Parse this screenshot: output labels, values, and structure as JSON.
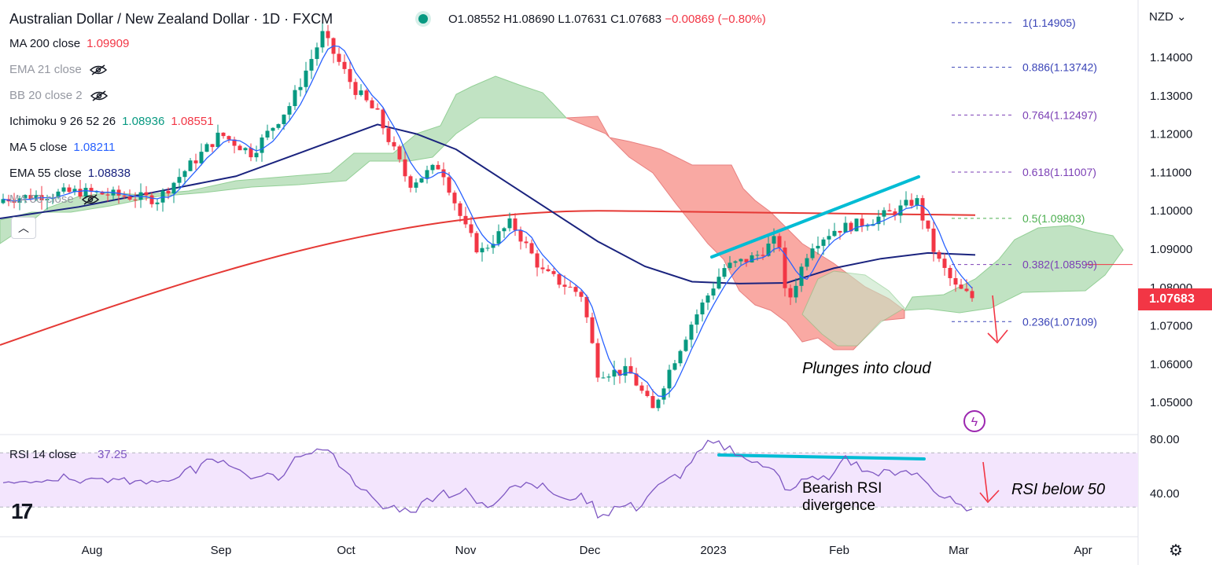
{
  "header": {
    "title": "Australian Dollar / New Zealand Dollar · 1D · FXCM",
    "ohlc": {
      "open_label": "O",
      "open": "1.08552",
      "high_label": "H",
      "high": "1.08690",
      "low_label": "L",
      "low": "1.07631",
      "close_label": "C",
      "close": "1.07683",
      "change": "−0.00869 (−0.80%)"
    }
  },
  "legend": [
    {
      "name": "MA 200 close",
      "value": "1.09909",
      "color": "#f23645",
      "hidden": false
    },
    {
      "name": "EMA 21 close",
      "value": "",
      "color": "#b2b5be",
      "hidden": true
    },
    {
      "name": "BB 20 close 2",
      "value": "",
      "color": "#b2b5be",
      "hidden": true
    },
    {
      "name": "Ichimoku 9 26 52 26",
      "value": "1.08936",
      "value2": "1.08551",
      "color": "#089981",
      "color2": "#f23645",
      "hidden": false
    },
    {
      "name": "MA 5 close",
      "value": "1.08211",
      "color": "#2962ff",
      "hidden": false
    },
    {
      "name": "EMA 55 close",
      "value": "1.08838",
      "color": "#1a237e",
      "hidden": false
    },
    {
      "name": "MA 50 close",
      "value": "",
      "color": "#b2b5be",
      "hidden": true
    }
  ],
  "price_axis": {
    "currency": "NZD",
    "ticks": [
      "1.14000",
      "1.13000",
      "1.12000",
      "1.11000",
      "1.10000",
      "1.09000",
      "1.08000",
      "1.07000",
      "1.06000",
      "1.05000"
    ],
    "last_price": "1.07683",
    "last_price_color": "#f23645"
  },
  "time_axis": {
    "ticks": [
      "Aug",
      "Sep",
      "Oct",
      "Nov",
      "Dec",
      "2023",
      "Feb",
      "Mar",
      "Apr"
    ]
  },
  "fibonacci": [
    {
      "label": "1(1.14905)",
      "price": 1.14905,
      "color": "#3943b7"
    },
    {
      "label": "0.886(1.13742)",
      "price": 1.13742,
      "color": "#3943b7"
    },
    {
      "label": "0.764(1.12497)",
      "price": 1.12497,
      "color": "#7b3fb5"
    },
    {
      "label": "0.618(1.11007)",
      "price": 1.11007,
      "color": "#7b3fb5"
    },
    {
      "label": "0.5(1.09803)",
      "price": 1.09803,
      "color": "#4caf50"
    },
    {
      "label": "0.382(1.08599)",
      "price": 1.08599,
      "color": "#7b3fb5"
    },
    {
      "label": "0.236(1.07109)",
      "price": 1.07109,
      "color": "#3943b7"
    }
  ],
  "rsi": {
    "label": "RSI 14 close",
    "value": "37.25",
    "ticks": [
      "80.00",
      "40.00"
    ],
    "color": "#7e57c2"
  },
  "annotations": {
    "plunge": "Plunges into cloud",
    "divergence_line1": "Bearish RSI",
    "divergence_line2": "divergence",
    "rsi_below": "RSI below 50"
  },
  "colors": {
    "up": "#089981",
    "down": "#f23645",
    "trendline": "#00bcd4",
    "cloud_bull": "#b7dfb9",
    "cloud_bear": "#f9a09a",
    "ma200": "#e53935",
    "ema55": "#1a237e",
    "ma5": "#2962ff"
  },
  "chart_data": {
    "type": "candlestick",
    "symbol": "AUDNZD",
    "interval": "1D",
    "y_range": [
      1.046,
      1.152
    ],
    "x_range_days": [
      "2022-07-01",
      "2023-04-19"
    ],
    "candles_approx": [
      [
        "2022-08-05",
        1.105,
        1.109,
        1.101,
        1.107
      ],
      [
        "2022-08-12",
        1.1075,
        1.111,
        1.104,
        1.106
      ],
      [
        "2022-08-19",
        1.106,
        1.108,
        1.102,
        1.104
      ],
      [
        "2022-08-26",
        1.104,
        1.107,
        1.1,
        1.105
      ],
      [
        "2022-09-02",
        1.105,
        1.12,
        1.104,
        1.118
      ],
      [
        "2022-09-09",
        1.118,
        1.125,
        1.115,
        1.122
      ],
      [
        "2022-09-16",
        1.122,
        1.123,
        1.113,
        1.115
      ],
      [
        "2022-09-23",
        1.115,
        1.133,
        1.114,
        1.132
      ],
      [
        "2022-09-30",
        1.132,
        1.149,
        1.13,
        1.144
      ],
      [
        "2022-10-07",
        1.144,
        1.146,
        1.13,
        1.135
      ],
      [
        "2022-10-14",
        1.135,
        1.138,
        1.118,
        1.12
      ],
      [
        "2022-10-21",
        1.12,
        1.122,
        1.107,
        1.109
      ],
      [
        "2022-10-28",
        1.109,
        1.112,
        1.103,
        1.108
      ],
      [
        "2022-11-04",
        1.108,
        1.109,
        1.088,
        1.09
      ],
      [
        "2022-11-11",
        1.09,
        1.099,
        1.088,
        1.097
      ],
      [
        "2022-11-18",
        1.097,
        1.099,
        1.084,
        1.085
      ],
      [
        "2022-11-25",
        1.085,
        1.086,
        1.074,
        1.077
      ],
      [
        "2022-12-02",
        1.077,
        1.078,
        1.056,
        1.058
      ],
      [
        "2022-12-09",
        1.058,
        1.064,
        1.054,
        1.061
      ],
      [
        "2022-12-16",
        1.061,
        1.062,
        1.048,
        1.051
      ],
      [
        "2022-12-23",
        1.051,
        1.068,
        1.049,
        1.066
      ],
      [
        "2022-12-30",
        1.066,
        1.076,
        1.065,
        1.075
      ],
      [
        "2023-01-06",
        1.075,
        1.09,
        1.073,
        1.088
      ],
      [
        "2023-01-13",
        1.088,
        1.094,
        1.082,
        1.09
      ],
      [
        "2023-01-20",
        1.09,
        1.091,
        1.074,
        1.076
      ],
      [
        "2023-01-27",
        1.076,
        1.098,
        1.075,
        1.096
      ],
      [
        "2023-02-03",
        1.096,
        1.1,
        1.088,
        1.093
      ],
      [
        "2023-02-10",
        1.093,
        1.101,
        1.09,
        1.099
      ],
      [
        "2023-02-17",
        1.099,
        1.106,
        1.095,
        1.102
      ],
      [
        "2023-02-24",
        1.102,
        1.108,
        1.088,
        1.09
      ],
      [
        "2023-03-03",
        1.09,
        1.092,
        1.079,
        1.085
      ],
      [
        "2023-03-06",
        1.08552,
        1.0869,
        1.07631,
        1.07683
      ]
    ]
  }
}
